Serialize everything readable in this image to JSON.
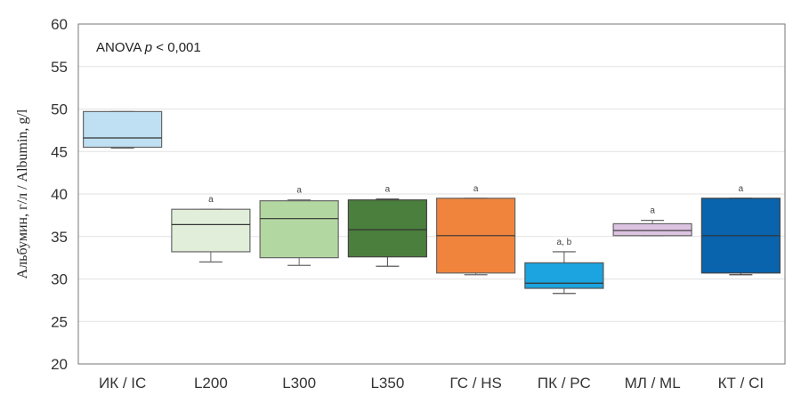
{
  "chart_data": {
    "type": "box",
    "annotation": {
      "prefix": "ANOVA ",
      "p": "p",
      "suffix": " < 0,001"
    },
    "ylabel": "Альбумин, г/л / Albumin, g/l",
    "ylim": [
      20,
      60
    ],
    "yticks": [
      20,
      25,
      30,
      35,
      40,
      45,
      50,
      55,
      60
    ],
    "grid": true,
    "categories": [
      "ИК / IC",
      "L200",
      "L300",
      "L350",
      "ГС / HS",
      "ПК / PC",
      "МЛ / ML",
      "КТ / CI"
    ],
    "boxes": [
      {
        "min": 45.4,
        "q1": 45.5,
        "median": 46.6,
        "q3": 49.7,
        "max": 49.7,
        "sig": "",
        "fill": "#bfe0f3",
        "stroke": "#666666"
      },
      {
        "min": 32.0,
        "q1": 33.2,
        "median": 36.4,
        "q3": 38.2,
        "max": 38.2,
        "sig": "a",
        "fill": "#e1efda",
        "stroke": "#666666"
      },
      {
        "min": 31.6,
        "q1": 32.5,
        "median": 37.1,
        "q3": 39.2,
        "max": 39.3,
        "sig": "a",
        "fill": "#b3d7a1",
        "stroke": "#666666"
      },
      {
        "min": 31.5,
        "q1": 32.6,
        "median": 35.8,
        "q3": 39.3,
        "max": 39.4,
        "sig": "a",
        "fill": "#4b7f3d",
        "stroke": "#444444"
      },
      {
        "min": 30.5,
        "q1": 30.7,
        "median": 35.1,
        "q3": 39.5,
        "max": 39.5,
        "sig": "a",
        "fill": "#f0843d",
        "stroke": "#666666"
      },
      {
        "min": 28.3,
        "q1": 28.9,
        "median": 29.5,
        "q3": 31.9,
        "max": 33.2,
        "sig": "a, b",
        "fill": "#1ba4df",
        "stroke": "#555555"
      },
      {
        "min": 35.1,
        "q1": 35.1,
        "median": 35.7,
        "q3": 36.5,
        "max": 36.9,
        "sig": "a",
        "fill": "#dcc3e2",
        "stroke": "#666666"
      },
      {
        "min": 30.5,
        "q1": 30.7,
        "median": 35.1,
        "q3": 39.5,
        "max": 39.5,
        "sig": "a",
        "fill": "#0963ad",
        "stroke": "#444444"
      }
    ]
  }
}
